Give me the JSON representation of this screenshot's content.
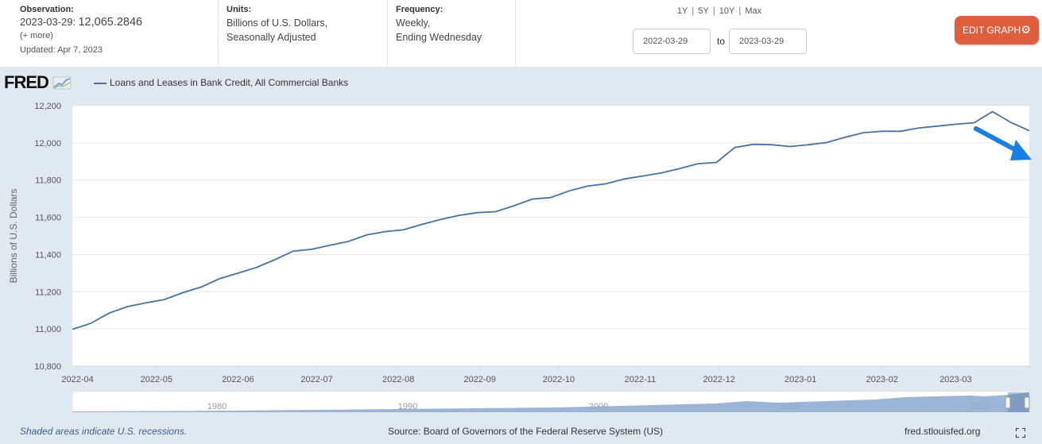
{
  "header": {
    "observation": {
      "label": "Observation:",
      "date": "2023-03-29:",
      "value": "12,065.2846",
      "more": "(+ more)",
      "updated": "Updated: Apr 7, 2023"
    },
    "units": {
      "label": "Units:",
      "line1": "Billions of U.S. Dollars,",
      "line2": "Seasonally Adjusted"
    },
    "frequency": {
      "label": "Frequency:",
      "line1": "Weekly,",
      "line2": "Ending Wednesday"
    },
    "ranges": [
      "1Y",
      "5Y",
      "10Y",
      "Max"
    ],
    "date_from": "2022-03-29",
    "to_label": "to",
    "date_to": "2023-03-29",
    "edit_button": "EDIT GRAPH"
  },
  "logo": "FRED",
  "colors": {
    "line": "#4572a7",
    "arrow": "#1a7fe0",
    "button": "#df5e3d"
  },
  "footer": {
    "note": "Shaded areas indicate U.S. recessions.",
    "source": "Source: Board of Governors of the Federal Reserve System (US)",
    "url": "fred.stlouisfed.org"
  },
  "navigator": {
    "labels": [
      "1980",
      "1990",
      "2000",
      "2010",
      "2020"
    ]
  },
  "chart_data": {
    "type": "line",
    "title": "",
    "legend": "Loans and Leases in Bank Credit, All Commercial Banks",
    "xlabel": "",
    "ylabel": "Billions of U.S. Dollars",
    "ylim": [
      10800,
      12200
    ],
    "yticks": [
      "10,800",
      "11,000",
      "11,200",
      "11,400",
      "11,600",
      "11,800",
      "12,000",
      "12,200"
    ],
    "xticks": [
      "2022-04",
      "2022-05",
      "2022-06",
      "2022-07",
      "2022-08",
      "2022-09",
      "2022-10",
      "2022-11",
      "2022-12",
      "2023-01",
      "2023-02",
      "2023-03"
    ],
    "series": [
      {
        "name": "Loans and Leases in Bank Credit, All Commercial Banks",
        "x": [
          "2022-03-30",
          "2022-04-06",
          "2022-04-13",
          "2022-04-20",
          "2022-04-27",
          "2022-05-04",
          "2022-05-11",
          "2022-05-18",
          "2022-05-25",
          "2022-06-01",
          "2022-06-08",
          "2022-06-15",
          "2022-06-22",
          "2022-06-29",
          "2022-07-06",
          "2022-07-13",
          "2022-07-20",
          "2022-07-27",
          "2022-08-03",
          "2022-08-10",
          "2022-08-17",
          "2022-08-24",
          "2022-08-31",
          "2022-09-07",
          "2022-09-14",
          "2022-09-21",
          "2022-09-28",
          "2022-10-05",
          "2022-10-12",
          "2022-10-19",
          "2022-10-26",
          "2022-11-02",
          "2022-11-09",
          "2022-11-16",
          "2022-11-23",
          "2022-11-30",
          "2022-12-07",
          "2022-12-14",
          "2022-12-21",
          "2022-12-28",
          "2023-01-04",
          "2023-01-11",
          "2023-01-18",
          "2023-01-25",
          "2023-02-01",
          "2023-02-08",
          "2023-02-15",
          "2023-02-22",
          "2023-03-01",
          "2023-03-08",
          "2023-03-15",
          "2023-03-22",
          "2023-03-29"
        ],
        "values": [
          10998,
          11030,
          11085,
          11120,
          11140,
          11158,
          11195,
          11225,
          11270,
          11300,
          11330,
          11372,
          11418,
          11428,
          11450,
          11470,
          11505,
          11523,
          11533,
          11562,
          11588,
          11610,
          11625,
          11630,
          11662,
          11698,
          11706,
          11742,
          11768,
          11780,
          11806,
          11822,
          11838,
          11862,
          11888,
          11895,
          11975,
          11992,
          11990,
          11980,
          11990,
          12002,
          12030,
          12055,
          12062,
          12062,
          12080,
          12090,
          12100,
          12108,
          12168,
          12110,
          12065
        ]
      }
    ]
  }
}
